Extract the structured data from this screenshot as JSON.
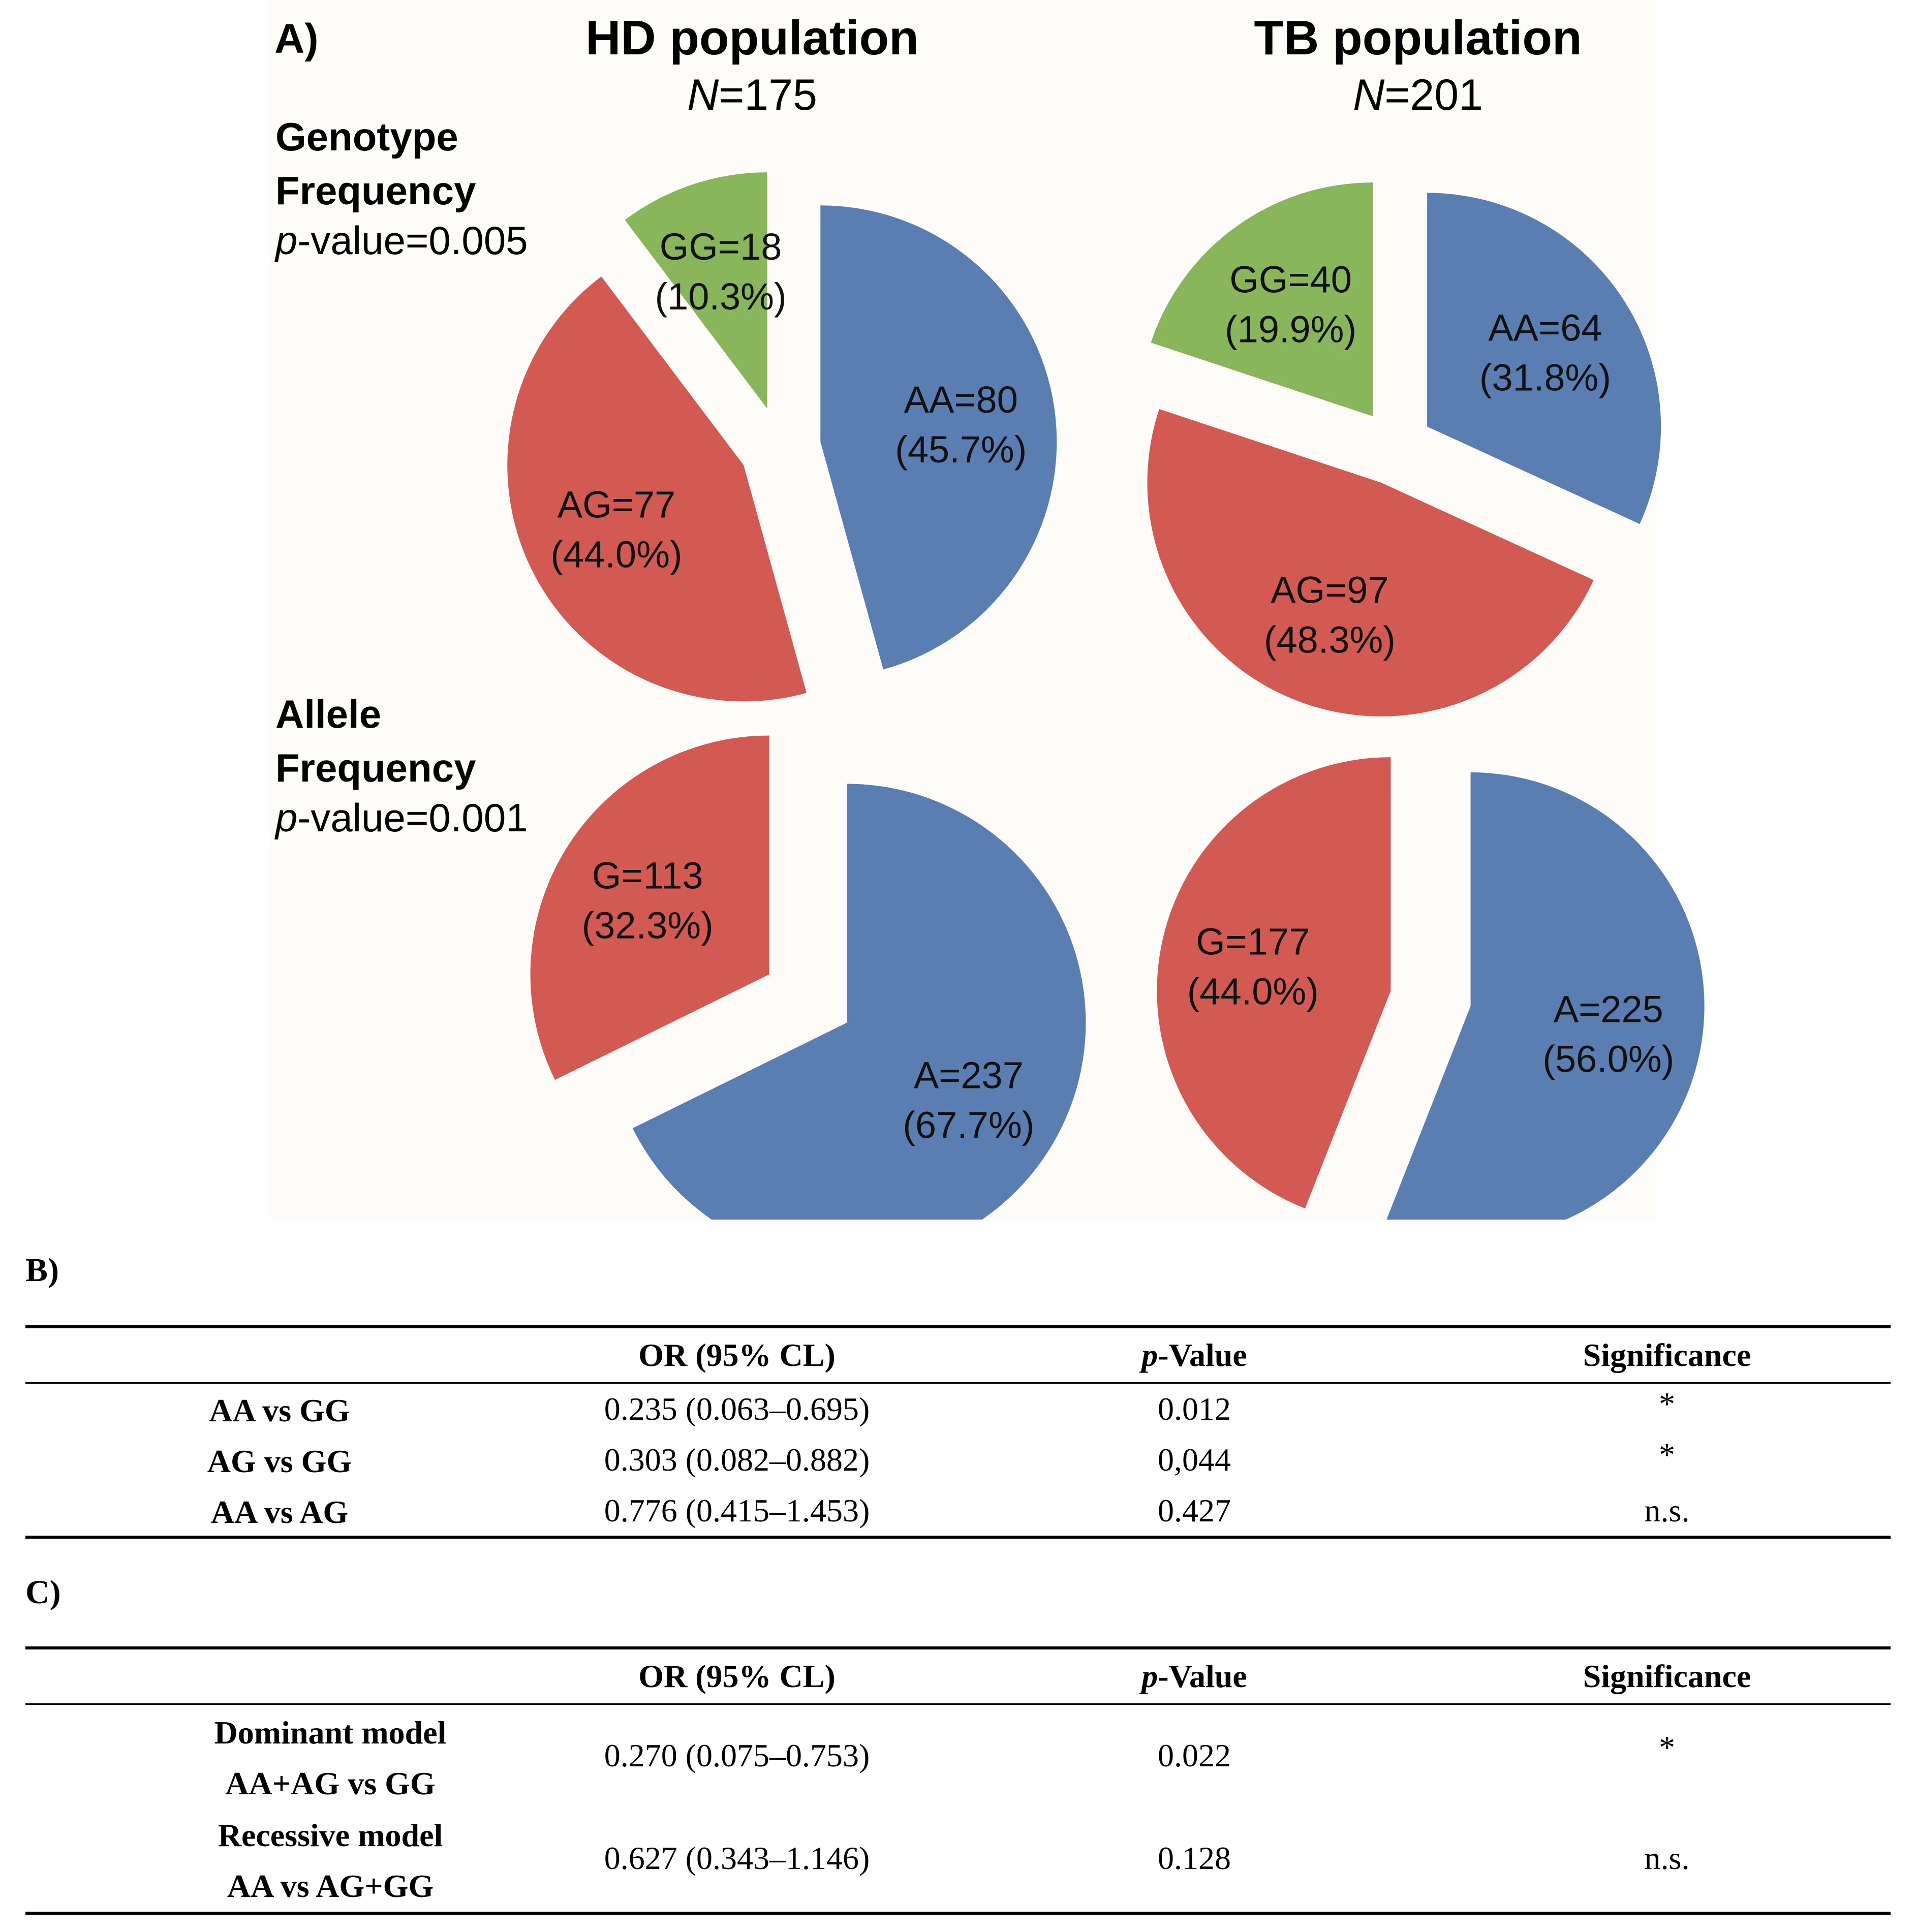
{
  "figure": {
    "panel_a_label": "A)",
    "row_genotype": {
      "line1": "Genotype",
      "line2": "Frequency",
      "p_italic": "p",
      "p_rest": "-value=0.005"
    },
    "row_allele": {
      "line1": "Allele",
      "line2": "Frequency",
      "p_italic": "p",
      "p_rest": "-value=0.001"
    },
    "populations": [
      {
        "title": "HD population",
        "n_italic": "N",
        "n_rest": "=175"
      },
      {
        "title": "TB population",
        "n_italic": "N",
        "n_rest": "=201"
      }
    ]
  },
  "colors": {
    "blue": "#5a7db2",
    "red": "#d25a52",
    "green": "#89b65a",
    "panel_bg": "#fefcf9"
  },
  "chart_data": [
    {
      "type": "pie",
      "title": "HD population — Genotype Frequency",
      "slices": [
        {
          "name": "AA",
          "count": 80,
          "label": "AA=80",
          "pct": "(45.7%)",
          "color": "#5a7db2"
        },
        {
          "name": "AG",
          "count": 77,
          "label": "AG=77",
          "pct": "(44.0%)",
          "color": "#d25a52"
        },
        {
          "name": "GG",
          "count": 18,
          "label": "GG=18",
          "pct": "(10.3%)",
          "color": "#89b65a"
        }
      ]
    },
    {
      "type": "pie",
      "title": "TB population — Genotype Frequency",
      "slices": [
        {
          "name": "AA",
          "count": 64,
          "label": "AA=64",
          "pct": "(31.8%)",
          "color": "#5a7db2"
        },
        {
          "name": "AG",
          "count": 97,
          "label": "AG=97",
          "pct": "(48.3%)",
          "color": "#d25a52"
        },
        {
          "name": "GG",
          "count": 40,
          "label": "GG=40",
          "pct": "(19.9%)",
          "color": "#89b65a"
        }
      ]
    },
    {
      "type": "pie",
      "title": "HD population — Allele Frequency",
      "slices": [
        {
          "name": "A",
          "count": 237,
          "label": "A=237",
          "pct": "(67.7%)",
          "color": "#5a7db2"
        },
        {
          "name": "G",
          "count": 113,
          "label": "G=113",
          "pct": "(32.3%)",
          "color": "#d25a52"
        }
      ]
    },
    {
      "type": "pie",
      "title": "TB population — Allele Frequency",
      "slices": [
        {
          "name": "A",
          "count": 225,
          "label": "A=225",
          "pct": "(56.0%)",
          "color": "#5a7db2"
        },
        {
          "name": "G",
          "count": 177,
          "label": "G=177",
          "pct": "(44.0%)",
          "color": "#d25a52"
        }
      ]
    }
  ],
  "table_b": {
    "label": "B)",
    "headers": {
      "or": "OR (95% CL)",
      "p_italic": "p",
      "p_rest": "-Value",
      "sig": "Significance"
    },
    "rows": [
      {
        "comparison": "AA vs GG",
        "or": "0.235 (0.063–0.695)",
        "p": "0.012",
        "sig": "*"
      },
      {
        "comparison": "AG vs GG",
        "or": "0.303 (0.082–0.882)",
        "p": "0,044",
        "sig": "*"
      },
      {
        "comparison": "AA vs AG",
        "or": "0.776 (0.415–1.453)",
        "p": "0.427",
        "sig": "n.s."
      }
    ]
  },
  "table_c": {
    "label": "C)",
    "headers": {
      "or": "OR (95% CL)",
      "p_italic": "p",
      "p_rest": "-Value",
      "sig": "Significance"
    },
    "rows": [
      {
        "model": "Dominant model",
        "comparison": "AA+AG vs GG",
        "or": "0.270 (0.075–0.753)",
        "p": "0.022",
        "sig": "*"
      },
      {
        "model": "Recessive model",
        "comparison": "AA vs AG+GG",
        "or": "0.627 (0.343–1.146)",
        "p": "0.128",
        "sig": "n.s."
      }
    ]
  }
}
